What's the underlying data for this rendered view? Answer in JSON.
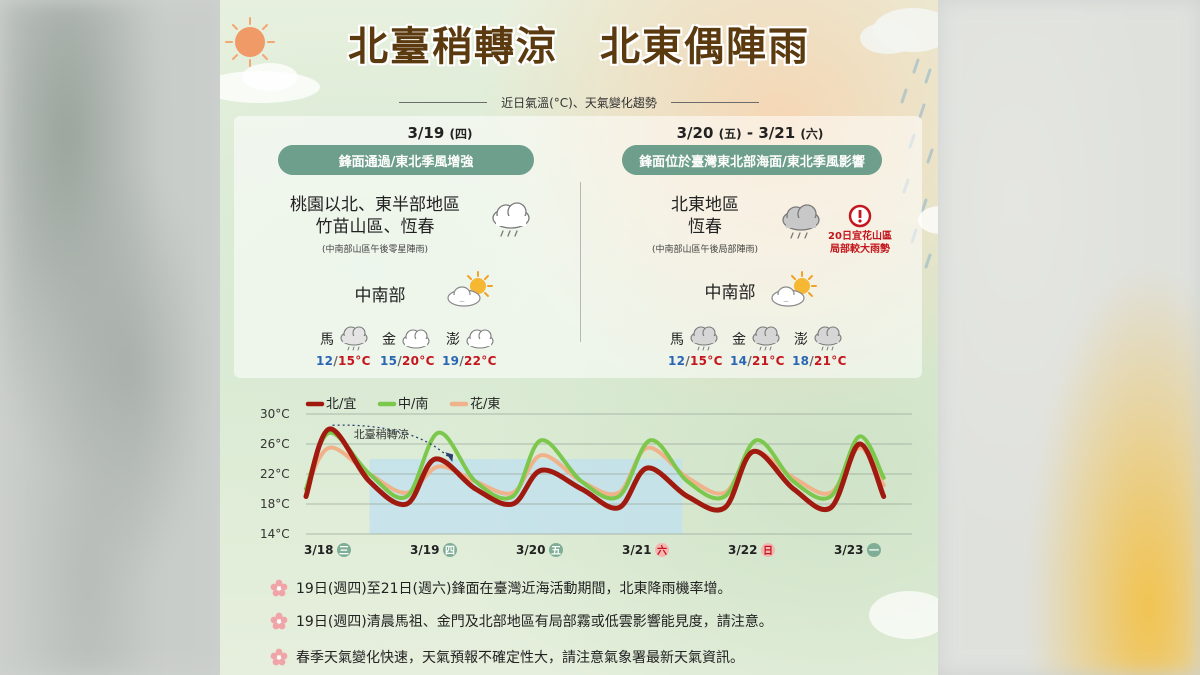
{
  "title": "北臺稍轉涼　北東偶陣雨",
  "subtitle": "近日氣溫(°C)、天氣變化趨勢",
  "day1": {
    "date": "3/19",
    "dow": "(四)",
    "pill": "鋒面通過/東北季風增強",
    "north_region_line1": "桃園以北、東半部地區",
    "north_region_line2": "竹苗山區、恆春",
    "north_note": "(中南部山區午後零星陣雨)",
    "central_region": "中南部",
    "islands": [
      {
        "name": "馬",
        "low": "12",
        "high": "15°C",
        "icon": "cloud-rain-icon"
      },
      {
        "name": "金",
        "low": "15",
        "high": "20°C",
        "icon": "cloud-icon"
      },
      {
        "name": "澎",
        "low": "19",
        "high": "22°C",
        "icon": "cloud-icon"
      }
    ]
  },
  "day2": {
    "date_a": "3/20",
    "dow_a": "(五)",
    "sep": "-",
    "date_b": "3/21",
    "dow_b": "(六)",
    "pill": "鋒面位於臺灣東北部海面/東北季風影響",
    "north_region_line1": "北東地區",
    "north_region_line2": "恆春",
    "north_note": "(中南部山區午後局部陣雨)",
    "warning_line1": "20日宜花山區",
    "warning_line2": "局部較大雨勢",
    "central_region": "中南部",
    "islands": [
      {
        "name": "馬",
        "low": "12",
        "high": "15°C",
        "icon": "cloud-rain-icon"
      },
      {
        "name": "金",
        "low": "14",
        "high": "21°C",
        "icon": "cloud-rain-icon"
      },
      {
        "name": "澎",
        "low": "18",
        "high": "21°C",
        "icon": "cloud-rain-icon"
      }
    ]
  },
  "chart_data": {
    "type": "line",
    "legend": [
      "北/宜",
      "中/南",
      "花/東"
    ],
    "colors": {
      "北/宜": "#a01a10",
      "中/南": "#7cc84c",
      "花/東": "#f0b28a"
    },
    "ylim": [
      14,
      30
    ],
    "yticks": [
      "30°C",
      "26°C",
      "22°C",
      "18°C",
      "14°C"
    ],
    "x_labels": [
      {
        "date": "3/18",
        "dow": "三",
        "x": 0,
        "holiday": false
      },
      {
        "date": "3/19",
        "dow": "四",
        "x": 1,
        "holiday": false
      },
      {
        "date": "3/20",
        "dow": "五",
        "x": 2,
        "holiday": false
      },
      {
        "date": "3/21",
        "dow": "六",
        "x": 3,
        "holiday": true
      },
      {
        "date": "3/22",
        "dow": "日",
        "x": 4,
        "holiday": true
      },
      {
        "date": "3/23",
        "dow": "一",
        "x": 5,
        "holiday": false
      }
    ],
    "highlight_range": [
      0.6,
      3.55
    ],
    "annotation": "北臺稍轉涼",
    "series": [
      {
        "name": "北/宜",
        "x": [
          0,
          0.22,
          0.6,
          0.95,
          1.22,
          1.6,
          1.95,
          2.22,
          2.6,
          2.95,
          3.22,
          3.6,
          3.95,
          4.22,
          4.6,
          4.95,
          5.22,
          5.45
        ],
        "y": [
          19,
          28,
          21,
          18,
          24,
          20,
          18,
          22.5,
          20,
          17.5,
          22.8,
          19,
          17.5,
          25,
          20,
          17.5,
          26,
          19
        ]
      },
      {
        "name": "中/南",
        "x": [
          0,
          0.22,
          0.6,
          0.95,
          1.25,
          1.6,
          1.95,
          2.22,
          2.6,
          2.95,
          3.25,
          3.6,
          3.95,
          4.25,
          4.6,
          4.95,
          5.22,
          5.45
        ],
        "y": [
          20,
          27.5,
          22,
          19,
          27.5,
          21,
          19,
          26.5,
          21,
          19,
          26.5,
          21,
          19,
          26.5,
          21,
          19,
          27,
          21.5
        ]
      },
      {
        "name": "花/東",
        "x": [
          0,
          0.22,
          0.6,
          0.95,
          1.25,
          1.6,
          1.95,
          2.22,
          2.6,
          2.95,
          3.22,
          3.6,
          3.95,
          4.22,
          4.6,
          4.95,
          5.22,
          5.45
        ],
        "y": [
          20,
          25.5,
          22,
          19.5,
          23,
          21,
          19.5,
          24.5,
          21,
          19.5,
          25.5,
          21.5,
          19.5,
          25,
          21.5,
          19.5,
          25.5,
          20.5
        ]
      }
    ]
  },
  "bullets": [
    "19日(週四)至21日(週六)鋒面在臺灣近海活動期間，北東降雨機率增。",
    "19日(週四)清晨馬祖、金門及北部地區有局部霧或低雲影響能見度，請注意。",
    "春季天氣變化快速，天氣預報不確定性大，請注意氣象署最新天氣資訊。"
  ]
}
